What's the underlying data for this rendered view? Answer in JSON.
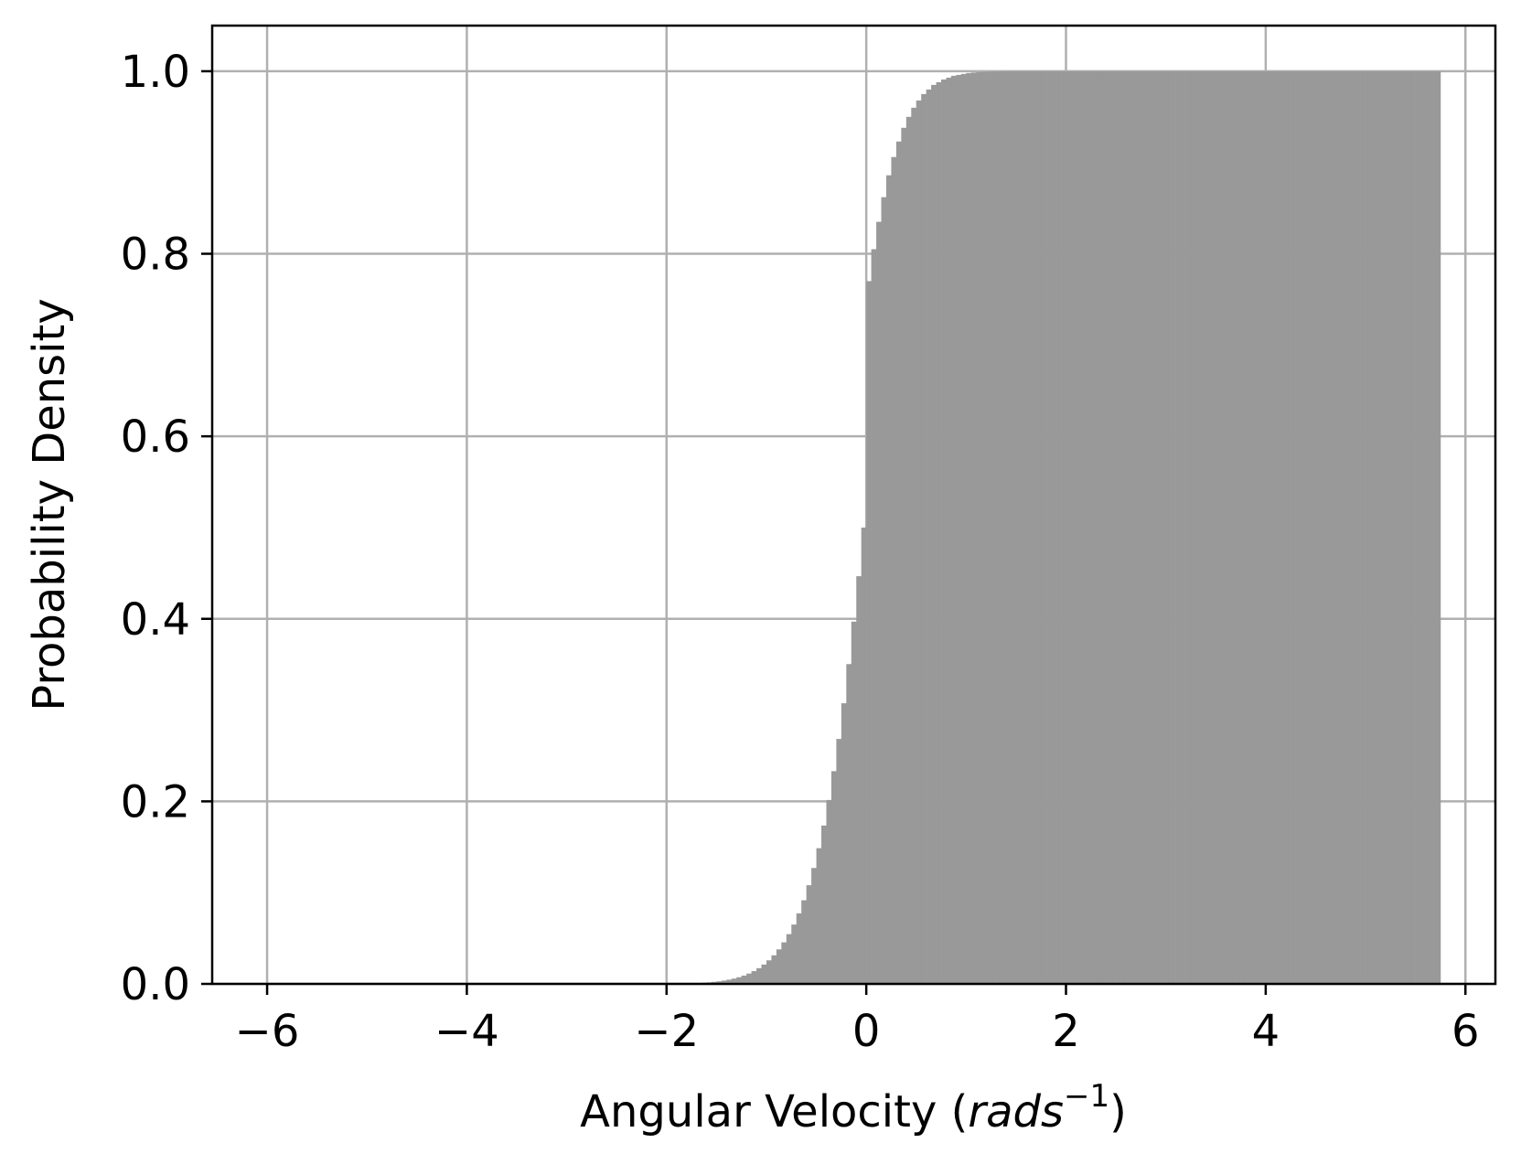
{
  "chart_data": {
    "type": "bar",
    "title": "",
    "xlabel": {
      "prefix": "Angular Velocity (",
      "italic": "rads",
      "sup": "−1",
      "suffix": ")"
    },
    "ylabel": "Probability Density",
    "xlim": [
      -6.55,
      6.3
    ],
    "ylim": [
      0,
      1.05
    ],
    "grid": true,
    "legend": "none",
    "bar_color": "#999999",
    "grid_color": "#b0b0b0",
    "x_ticks": [
      {
        "value": -6,
        "label": "−6"
      },
      {
        "value": -4,
        "label": "−4"
      },
      {
        "value": -2,
        "label": "−2"
      },
      {
        "value": 0,
        "label": "0"
      },
      {
        "value": 2,
        "label": "2"
      },
      {
        "value": 4,
        "label": "4"
      },
      {
        "value": 6,
        "label": "6"
      }
    ],
    "y_ticks": [
      {
        "value": 0.0,
        "label": "0.0"
      },
      {
        "value": 0.2,
        "label": "0.2"
      },
      {
        "value": 0.4,
        "label": "0.4"
      },
      {
        "value": 0.6,
        "label": "0.6"
      },
      {
        "value": 0.8,
        "label": "0.8"
      },
      {
        "value": 1.0,
        "label": "1.0"
      }
    ],
    "bin_width": 0.05,
    "series": [
      {
        "x": [
          -1.8,
          -1.75,
          -1.7,
          -1.65,
          -1.6,
          -1.55,
          -1.5,
          -1.45,
          -1.4,
          -1.35,
          -1.3,
          -1.25,
          -1.2,
          -1.15,
          -1.1,
          -1.05,
          -1.0,
          -0.95,
          -0.9,
          -0.85,
          -0.8,
          -0.75,
          -0.7,
          -0.65,
          -0.6,
          -0.55,
          -0.5,
          -0.45,
          -0.4,
          -0.35,
          -0.3,
          -0.25,
          -0.2,
          -0.15,
          -0.1,
          -0.05,
          0.0,
          0.05,
          0.1,
          0.15,
          0.2,
          0.25,
          0.3,
          0.35,
          0.4,
          0.45,
          0.5,
          0.55,
          0.6,
          0.65,
          0.7,
          0.75,
          0.8,
          0.85,
          0.9,
          0.95,
          1.0,
          1.05,
          1.1,
          1.15,
          1.2,
          1.25,
          1.3,
          1.35,
          1.4,
          1.45,
          1.5,
          1.55,
          1.6,
          1.65,
          1.7,
          1.75,
          1.8,
          1.85,
          1.9,
          1.95,
          2.0,
          2.05,
          2.1,
          2.15,
          2.2,
          2.25,
          2.3,
          2.35,
          2.4,
          2.45,
          2.5,
          2.55,
          2.6,
          2.65,
          2.7,
          2.75,
          2.8,
          2.85,
          2.9,
          2.95,
          3.0,
          3.05,
          3.1,
          3.15,
          3.2,
          3.25,
          3.3,
          3.35,
          3.4,
          3.45,
          3.5,
          3.55,
          3.6,
          3.65,
          3.7,
          3.75,
          3.8,
          3.85,
          3.9,
          3.95,
          4.0,
          4.05,
          4.1,
          4.15,
          4.2,
          4.25,
          4.3,
          4.35,
          4.4,
          4.45,
          4.5,
          4.55,
          4.6,
          4.65,
          4.7,
          4.75,
          4.8,
          4.85,
          4.9,
          4.95,
          5.0,
          5.05,
          5.1,
          5.15,
          5.2,
          5.25,
          5.3,
          5.35,
          5.4,
          5.45,
          5.5,
          5.55,
          5.6,
          5.65,
          5.7
        ],
        "values": [
          0.0005,
          0.0007,
          0.001,
          0.0013,
          0.0017,
          0.0022,
          0.0028,
          0.0036,
          0.0046,
          0.0058,
          0.0073,
          0.0091,
          0.0113,
          0.014,
          0.0172,
          0.0212,
          0.0258,
          0.0313,
          0.0378,
          0.0455,
          0.0545,
          0.065,
          0.0773,
          0.0916,
          0.1081,
          0.127,
          0.1487,
          0.1735,
          0.2015,
          0.2331,
          0.2684,
          0.3075,
          0.3504,
          0.3969,
          0.4467,
          0.5,
          0.77,
          0.805,
          0.835,
          0.862,
          0.886,
          0.906,
          0.923,
          0.938,
          0.95,
          0.96,
          0.968,
          0.975,
          0.98,
          0.985,
          0.988,
          0.991,
          0.993,
          0.995,
          0.996,
          0.997,
          0.998,
          0.9985,
          0.999,
          0.9993,
          0.9995,
          0.9997,
          0.9998,
          0.9999,
          1.0,
          1.0,
          1.0,
          1.0,
          1.0,
          1.0,
          1.0,
          1.0,
          1.0,
          1.0,
          1.0,
          1.0,
          1.0,
          1.0,
          1.0,
          1.0,
          1.0,
          1.0,
          1.0,
          1.0,
          1.0,
          1.0,
          1.0,
          1.0,
          1.0,
          1.0,
          1.0,
          1.0,
          1.0,
          1.0,
          1.0,
          1.0,
          1.0,
          1.0,
          1.0,
          1.0,
          1.0,
          1.0,
          1.0,
          1.0,
          1.0,
          1.0,
          1.0,
          1.0,
          1.0,
          1.0,
          1.0,
          1.0,
          1.0,
          1.0,
          1.0,
          1.0,
          1.0,
          1.0,
          1.0,
          1.0,
          1.0,
          1.0,
          1.0,
          1.0,
          1.0,
          1.0,
          1.0,
          1.0,
          1.0,
          1.0,
          1.0,
          1.0,
          1.0,
          1.0,
          1.0,
          1.0,
          1.0,
          1.0,
          1.0,
          1.0,
          1.0,
          1.0,
          1.0,
          1.0,
          1.0,
          1.0,
          1.0,
          1.0,
          1.0,
          1.0,
          1.0
        ]
      }
    ]
  }
}
